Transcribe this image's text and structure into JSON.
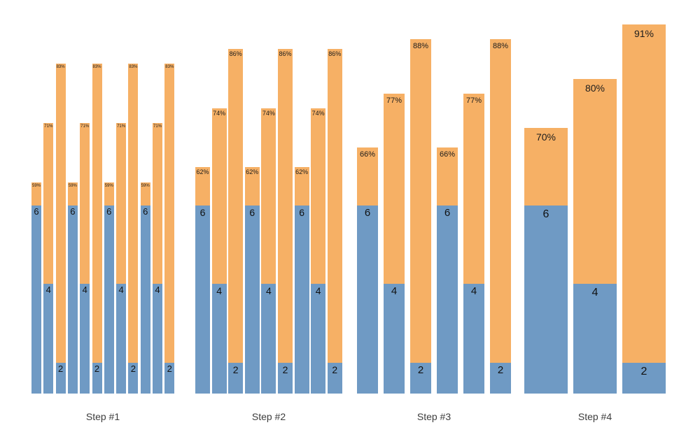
{
  "chart_data": {
    "type": "bar",
    "subtype": "stacked-progressive-aggregation",
    "title": "",
    "xlabel": "",
    "ylabel": "",
    "grid": false,
    "legend": "none",
    "description": "Four panels of stacked bars (blue base segment labeled with its category number 6/4/2, orange extension labeled with total percentage at its top). Bar count per panel shrinks (12, 9, 6, 3) while bars widen; totals rise each step.",
    "categories": [
      "6",
      "4",
      "2"
    ],
    "series": [
      {
        "name": "blue-base",
        "color": "#6f9ac4"
      },
      {
        "name": "orange-extension",
        "color": "#f6b065"
      }
    ],
    "blue_top_pct": {
      "6": 54.3,
      "4": 38.4,
      "2": 22.3
    },
    "baseline_pct": 16,
    "groups": [
      {
        "label": "Step #1",
        "repeats": 4,
        "bars": [
          {
            "category": "6",
            "total_pct": 59,
            "total_label": "59%"
          },
          {
            "category": "4",
            "total_pct": 71,
            "total_label": "71%"
          },
          {
            "category": "2",
            "total_pct": 83,
            "total_label": "83%"
          }
        ]
      },
      {
        "label": "Step #2",
        "repeats": 3,
        "bars": [
          {
            "category": "6",
            "total_pct": 62,
            "total_label": "62%"
          },
          {
            "category": "4",
            "total_pct": 74,
            "total_label": "74%"
          },
          {
            "category": "2",
            "total_pct": 86,
            "total_label": "86%"
          }
        ]
      },
      {
        "label": "Step #3",
        "repeats": 2,
        "bars": [
          {
            "category": "6",
            "total_pct": 66,
            "total_label": "66%"
          },
          {
            "category": "4",
            "total_pct": 77,
            "total_label": "77%"
          },
          {
            "category": "2",
            "total_pct": 88,
            "total_label": "88%"
          }
        ]
      },
      {
        "label": "Step #4",
        "repeats": 1,
        "bars": [
          {
            "category": "6",
            "total_pct": 70,
            "total_label": "70%"
          },
          {
            "category": "4",
            "total_pct": 80,
            "total_label": "80%"
          },
          {
            "category": "2",
            "total_pct": 91,
            "total_label": "91%"
          }
        ]
      }
    ]
  }
}
